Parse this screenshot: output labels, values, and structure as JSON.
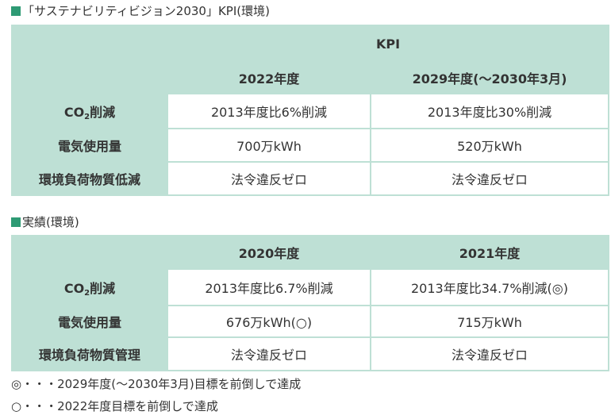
{
  "kpi_section": {
    "title": "「サステナビリティビジョン2030」KPI(環境)",
    "group_header": "KPI",
    "col1": "2022年度",
    "col2": "2029年度(〜2030年3月)",
    "rows": [
      {
        "label_main": "CO",
        "label_sub": "2",
        "label_tail": "削減",
        "v1": "2013年度比6%削減",
        "v2": "2013年度比30%削減"
      },
      {
        "label": "電気使用量",
        "v1": "700万kWh",
        "v2": "520万kWh"
      },
      {
        "label": "環境負荷物質低減",
        "v1": "法令違反ゼロ",
        "v2": "法令違反ゼロ"
      }
    ]
  },
  "results_section": {
    "title": "実績(環境)",
    "col1": "2020年度",
    "col2": "2021年度",
    "rows": [
      {
        "label_main": "CO",
        "label_sub": "2",
        "label_tail": "削減",
        "v1": "2013年度比6.7%削減",
        "v2": "2013年度比34.7%削減(◎)"
      },
      {
        "label": "電気使用量",
        "v1": "676万kWh(○)",
        "v2": "715万kWh"
      },
      {
        "label": "環境負荷物質管理",
        "v1": "法令違反ゼロ",
        "v2": "法令違反ゼロ"
      }
    ]
  },
  "notes": [
    "◎・・・2029年度(〜2030年3月)目標を前倒しで達成",
    "○・・・2022年度目標を前倒しで達成"
  ],
  "colors": {
    "accent": "#2e9a74",
    "table_bg": "#bee0d5",
    "cell_bg": "#ffffff"
  }
}
